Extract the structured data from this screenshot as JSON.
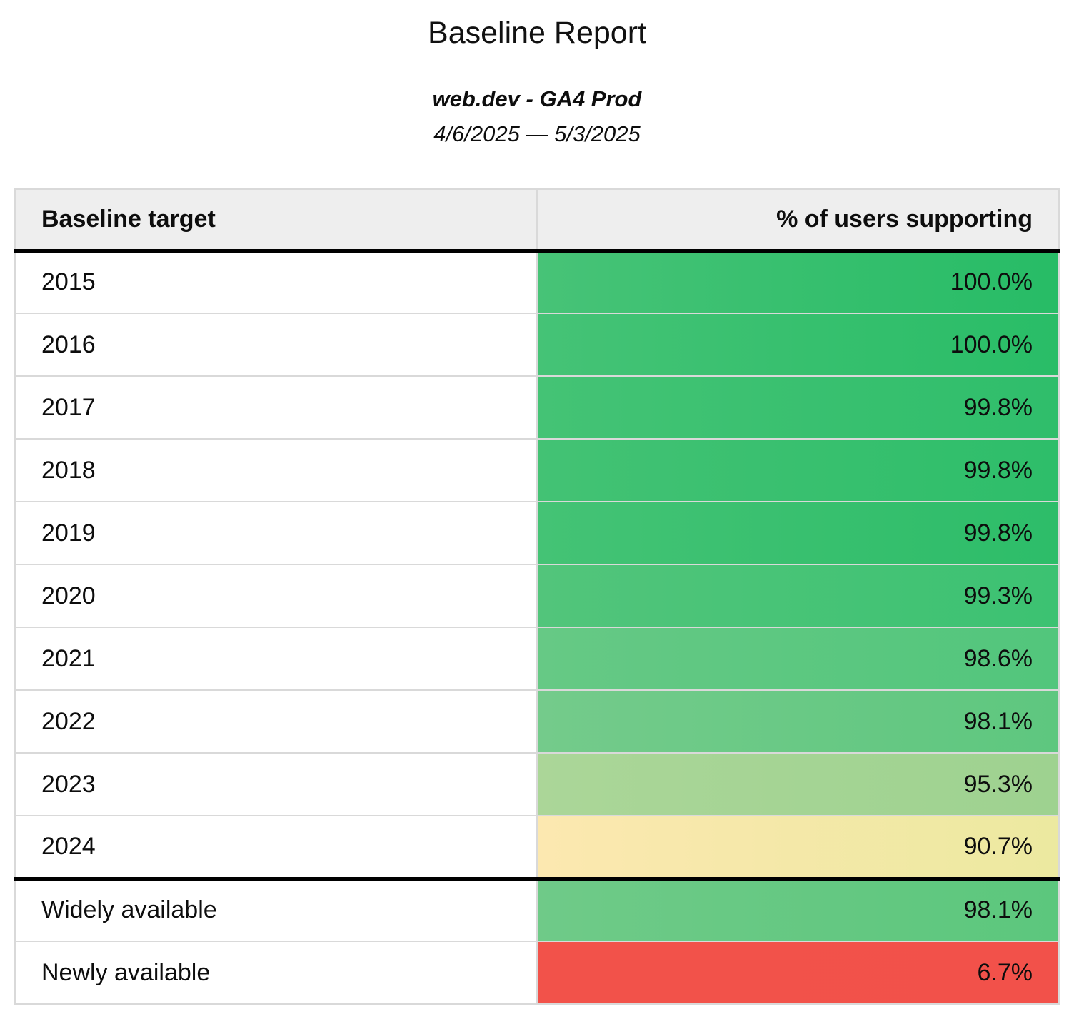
{
  "title": "Baseline Report",
  "subtitle": "web.dev - GA4 Prod",
  "date_range": "4/6/2025 — 5/3/2025",
  "table": {
    "columns": [
      "Baseline target",
      "% of users supporting"
    ],
    "year_rows": [
      {
        "target": "2015",
        "value": "100.0%",
        "bg": [
          "#47c377",
          "#27bc66"
        ]
      },
      {
        "target": "2016",
        "value": "100.0%",
        "bg": [
          "#45c376",
          "#29bd67"
        ]
      },
      {
        "target": "2017",
        "value": "99.8%",
        "bg": [
          "#44c375",
          "#2fbe6b"
        ]
      },
      {
        "target": "2018",
        "value": "99.8%",
        "bg": [
          "#43c274",
          "#2ebe6a"
        ]
      },
      {
        "target": "2019",
        "value": "99.8%",
        "bg": [
          "#44c375",
          "#2dbd69"
        ]
      },
      {
        "target": "2020",
        "value": "99.3%",
        "bg": [
          "#52c57b",
          "#3cc272"
        ]
      },
      {
        "target": "2021",
        "value": "98.6%",
        "bg": [
          "#66c985",
          "#52c67c"
        ]
      },
      {
        "target": "2022",
        "value": "98.1%",
        "bg": [
          "#74cb8b",
          "#5ec77f"
        ]
      },
      {
        "target": "2023",
        "value": "95.3%",
        "bg": [
          "#abd698",
          "#9ed290"
        ]
      },
      {
        "target": "2024",
        "value": "90.7%",
        "bg": [
          "#fce8b0",
          "#ece9a0"
        ]
      }
    ],
    "summary_rows": [
      {
        "target": "Widely available",
        "value": "98.1%",
        "bg": [
          "#6fca88",
          "#5cc77d"
        ]
      },
      {
        "target": "Newly available",
        "value": "6.7%",
        "bg": [
          "#f2524a",
          "#f2514a"
        ]
      }
    ]
  },
  "colors": {
    "header_bg": "#eeeeee",
    "row_border": "#d9d9d9",
    "section_rule": "#000000",
    "good": "#27bc66",
    "warn": "#ece9a0",
    "bad": "#f2514a"
  },
  "chart_data": {
    "type": "table",
    "title": "Baseline Report",
    "subtitle": "web.dev - GA4 Prod",
    "date_range": "4/6/2025 — 5/3/2025",
    "columns": [
      "Baseline target",
      "% of users supporting"
    ],
    "rows": [
      [
        "2015",
        100.0
      ],
      [
        "2016",
        100.0
      ],
      [
        "2017",
        99.8
      ],
      [
        "2018",
        99.8
      ],
      [
        "2019",
        99.8
      ],
      [
        "2020",
        99.3
      ],
      [
        "2021",
        98.6
      ],
      [
        "2022",
        98.1
      ],
      [
        "2023",
        95.3
      ],
      [
        "2024",
        90.7
      ],
      [
        "Widely available",
        98.1
      ],
      [
        "Newly available",
        6.7
      ]
    ],
    "value_unit": "%",
    "color_encoding": "cell background scales red (low) → yellow → green (high)"
  }
}
